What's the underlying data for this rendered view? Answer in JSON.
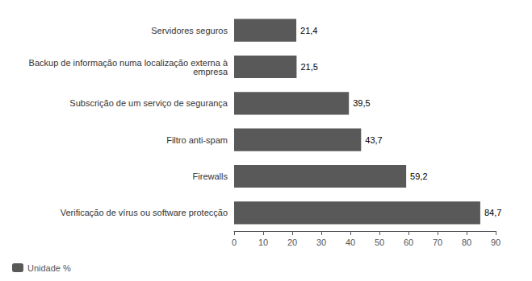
{
  "chart_data": {
    "type": "bar",
    "orientation": "horizontal",
    "categories": [
      "Verificação de vírus ou software protecção",
      "Firewalls",
      "Filtro anti-spam",
      "Subscrição de um serviço de segurança",
      "Backup de informação numa localização externa à\nempresa",
      "Servidores seguros"
    ],
    "series": [
      {
        "name": "Unidade %",
        "color": "#595959",
        "values": [
          84.7,
          59.2,
          43.7,
          39.5,
          21.5,
          21.4
        ],
        "value_labels": [
          "84,7",
          "59,2",
          "43,7",
          "39,5",
          "21,5",
          "21,4"
        ]
      }
    ],
    "xlim": [
      0,
      90
    ],
    "xticks": [
      0,
      10,
      20,
      30,
      40,
      50,
      60,
      70,
      80,
      90
    ],
    "grid": false,
    "legend": "lower left",
    "data_labels": true
  }
}
